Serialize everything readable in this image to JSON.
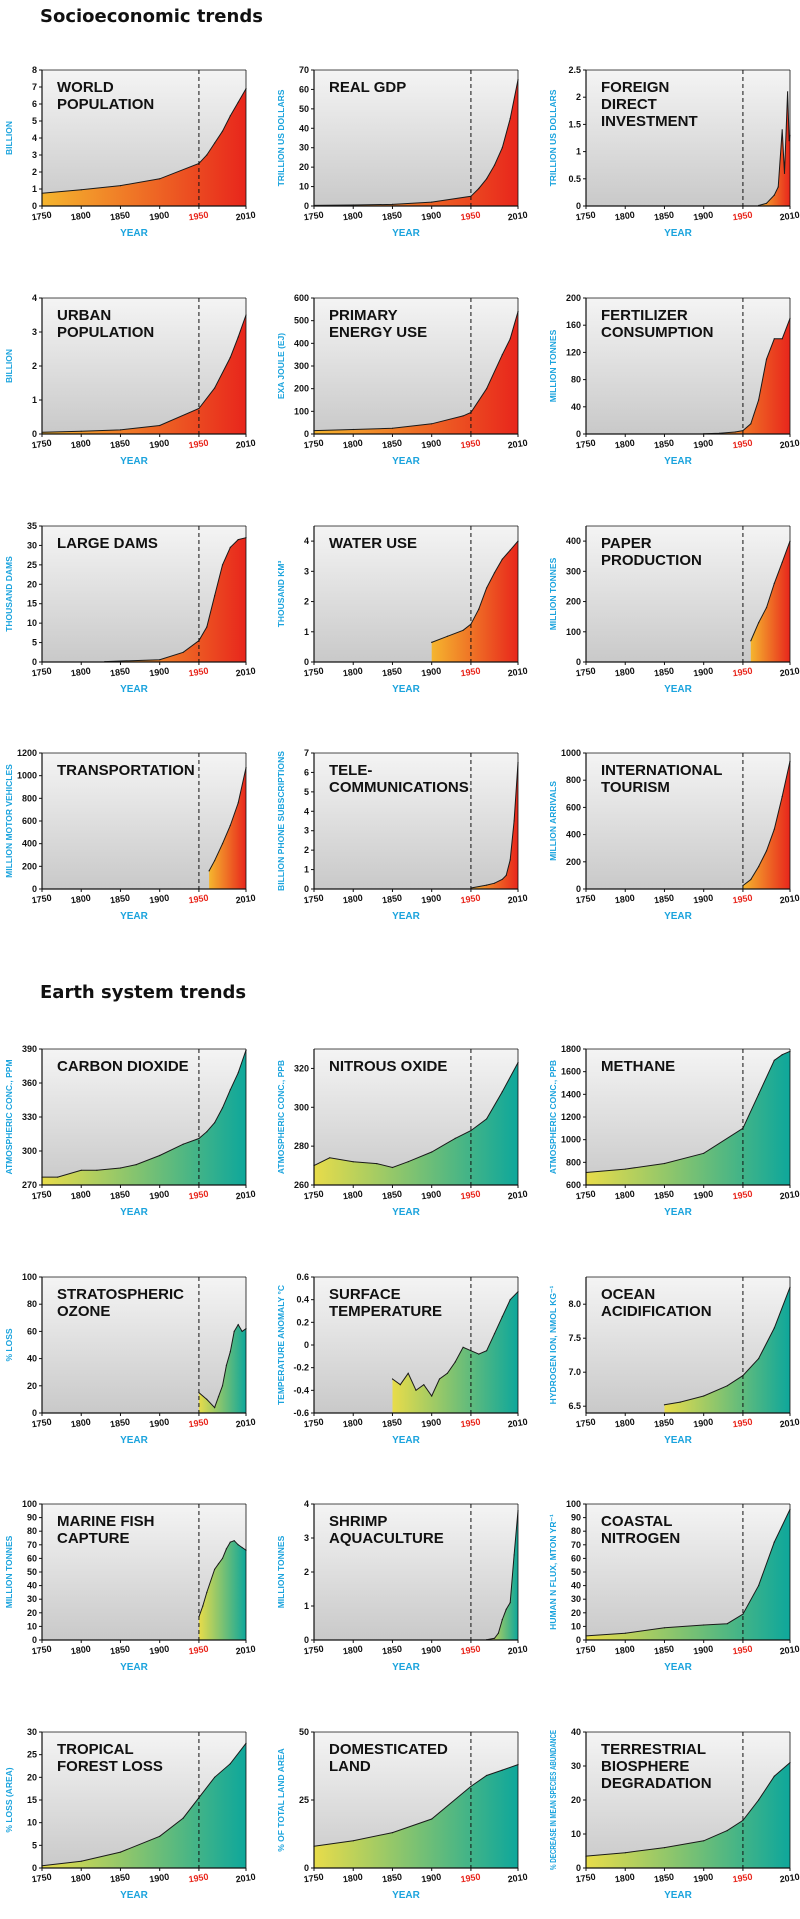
{
  "sections": [
    {
      "title": "Socioeconomic trends"
    },
    {
      "title": "Earth system trends"
    }
  ],
  "colors": {
    "socio_start": "#f5b52e",
    "socio_end": "#e8261c",
    "earth_start": "#e8dc4a",
    "earth_end": "#0ea79b",
    "axis_label": "#1aa3dd",
    "year_1950": "#e8261c",
    "panel_top": "#f4f4f4",
    "panel_bottom": "#c9c9c9"
  },
  "chart_data": [
    {
      "type": "area",
      "section": 0,
      "title": "WORLD\nPOPULATION",
      "ylabel": "BILLION",
      "xlabel": "YEAR",
      "ylim": [
        0,
        8
      ],
      "yticks": [
        "0",
        "1",
        "2",
        "3",
        "4",
        "5",
        "6",
        "7",
        "8"
      ],
      "xticks": [
        "1750",
        "1800",
        "1850",
        "1900",
        "1950",
        "2010"
      ],
      "x": [
        1750,
        1800,
        1850,
        1900,
        1950,
        1960,
        1970,
        1980,
        1990,
        2000,
        2010
      ],
      "values": [
        0.75,
        0.95,
        1.2,
        1.6,
        2.5,
        3.0,
        3.7,
        4.4,
        5.3,
        6.1,
        6.9
      ]
    },
    {
      "type": "area",
      "section": 0,
      "title": "REAL GDP",
      "ylabel": "TRILLION US DOLLARS",
      "xlabel": "YEAR",
      "ylim": [
        0,
        70
      ],
      "yticks": [
        "0",
        "10",
        "20",
        "30",
        "40",
        "50",
        "60",
        "70"
      ],
      "xticks": [
        "1750",
        "1800",
        "1850",
        "1900",
        "1950",
        "2010"
      ],
      "x": [
        1750,
        1800,
        1850,
        1900,
        1950,
        1960,
        1970,
        1980,
        1990,
        2000,
        2010
      ],
      "values": [
        0.3,
        0.5,
        0.8,
        2,
        5,
        9,
        14,
        21,
        30,
        45,
        65
      ]
    },
    {
      "type": "area",
      "section": 0,
      "title": "FOREIGN\nDIRECT\nINVESTMENT",
      "ylabel": "TRILLION US DOLLARS",
      "xlabel": "YEAR",
      "ylim": [
        0,
        2.5
      ],
      "yticks": [
        "0",
        "0.5",
        "1",
        "1.5",
        "2",
        "2.5"
      ],
      "xticks": [
        "1750",
        "1800",
        "1850",
        "1900",
        "1950",
        "2010"
      ],
      "x": [
        1970,
        1980,
        1990,
        1995,
        2000,
        2003,
        2007,
        2009,
        2010
      ],
      "values": [
        0.01,
        0.05,
        0.2,
        0.35,
        1.4,
        0.6,
        2.1,
        1.2,
        1.3
      ]
    },
    {
      "type": "area",
      "section": 0,
      "title": "URBAN\nPOPULATION",
      "ylabel": "BILLION",
      "xlabel": "YEAR",
      "ylim": [
        0,
        4
      ],
      "yticks": [
        "0",
        "1",
        "2",
        "3",
        "4"
      ],
      "xticks": [
        "1750",
        "1800",
        "1850",
        "1900",
        "1950",
        "2010"
      ],
      "x": [
        1750,
        1800,
        1850,
        1900,
        1950,
        1970,
        1990,
        2000,
        2010
      ],
      "values": [
        0.05,
        0.08,
        0.12,
        0.25,
        0.75,
        1.35,
        2.25,
        2.85,
        3.5
      ]
    },
    {
      "type": "area",
      "section": 0,
      "title": "PRIMARY\nENERGY USE",
      "ylabel": "EXA JOULE (EJ)",
      "xlabel": "YEAR",
      "ylim": [
        0,
        600
      ],
      "yticks": [
        "0",
        "100",
        "200",
        "300",
        "400",
        "500",
        "600"
      ],
      "xticks": [
        "1750",
        "1800",
        "1850",
        "1900",
        "1950",
        "2010"
      ],
      "x": [
        1750,
        1800,
        1850,
        1900,
        1940,
        1950,
        1970,
        1990,
        2000,
        2010
      ],
      "values": [
        15,
        20,
        25,
        45,
        80,
        95,
        200,
        350,
        420,
        540
      ]
    },
    {
      "type": "area",
      "section": 0,
      "title": "FERTILIZER\nCONSUMPTION",
      "ylabel": "MILLION TONNES",
      "xlabel": "YEAR",
      "ylim": [
        0,
        200
      ],
      "yticks": [
        "0",
        "40",
        "80",
        "120",
        "160",
        "200"
      ],
      "xticks": [
        "1750",
        "1800",
        "1850",
        "1900",
        "1950",
        "2010"
      ],
      "x": [
        1900,
        1920,
        1940,
        1950,
        1960,
        1970,
        1980,
        1990,
        2000,
        2010
      ],
      "values": [
        0.5,
        1,
        3,
        5,
        15,
        50,
        110,
        140,
        140,
        170
      ]
    },
    {
      "type": "area",
      "section": 0,
      "title": "LARGE DAMS",
      "ylabel": "THOUSAND DAMS",
      "xlabel": "YEAR",
      "ylim": [
        0,
        35
      ],
      "yticks": [
        "0",
        "5",
        "10",
        "15",
        "20",
        "25",
        "30",
        "35"
      ],
      "xticks": [
        "1750",
        "1800",
        "1850",
        "1900",
        "1950",
        "2010"
      ],
      "x": [
        1830,
        1900,
        1930,
        1950,
        1960,
        1970,
        1980,
        1990,
        2000,
        2010
      ],
      "values": [
        0.1,
        0.6,
        2.5,
        5.5,
        9,
        17,
        25,
        29.5,
        31.5,
        32
      ]
    },
    {
      "type": "area",
      "section": 0,
      "title": "WATER USE",
      "ylabel": "THOUSAND KM³",
      "xlabel": "YEAR",
      "ylim": [
        0,
        4.5
      ],
      "yticks": [
        "0",
        "1",
        "2",
        "3",
        "4"
      ],
      "xticks": [
        "1750",
        "1800",
        "1850",
        "1900",
        "1950",
        "2010"
      ],
      "x": [
        1900,
        1920,
        1940,
        1950,
        1960,
        1970,
        1980,
        1990,
        2000,
        2010
      ],
      "values": [
        0.65,
        0.85,
        1.05,
        1.25,
        1.75,
        2.45,
        2.95,
        3.4,
        3.7,
        4.0
      ]
    },
    {
      "type": "area",
      "section": 0,
      "title": "PAPER\nPRODUCTION",
      "ylabel": "MILLION TONNES",
      "xlabel": "YEAR",
      "ylim": [
        0,
        450
      ],
      "yticks": [
        "0",
        "100",
        "200",
        "300",
        "400"
      ],
      "xticks": [
        "1750",
        "1800",
        "1850",
        "1900",
        "1950",
        "2010"
      ],
      "x": [
        1960,
        1970,
        1980,
        1990,
        2000,
        2010
      ],
      "values": [
        70,
        130,
        180,
        260,
        330,
        400
      ]
    },
    {
      "type": "area",
      "section": 0,
      "title": "TRANSPORTATION",
      "ylabel": "MILLION MOTOR VEHICLES",
      "xlabel": "YEAR",
      "ylim": [
        0,
        1200
      ],
      "yticks": [
        "0",
        "200",
        "400",
        "600",
        "800",
        "1000",
        "1200"
      ],
      "xticks": [
        "1750",
        "1800",
        "1850",
        "1900",
        "1950",
        "2010"
      ],
      "x": [
        1963,
        1970,
        1980,
        1990,
        2000,
        2010
      ],
      "values": [
        160,
        250,
        400,
        560,
        760,
        1070
      ]
    },
    {
      "type": "area",
      "section": 0,
      "title": "TELE-\nCOMMUNICATIONS",
      "ylabel": "BILLION PHONE SUBSCRIPTIONS",
      "xlabel": "YEAR",
      "ylim": [
        0,
        7
      ],
      "yticks": [
        "0",
        "1",
        "2",
        "3",
        "4",
        "5",
        "6",
        "7"
      ],
      "xticks": [
        "1750",
        "1800",
        "1850",
        "1900",
        "1950",
        "2010"
      ],
      "x": [
        1950,
        1970,
        1980,
        1990,
        1995,
        2000,
        2005,
        2010
      ],
      "values": [
        0.05,
        0.2,
        0.3,
        0.5,
        0.7,
        1.5,
        3.5,
        6.5
      ]
    },
    {
      "type": "area",
      "section": 0,
      "title": "INTERNATIONAL\nTOURISM",
      "ylabel": "MILLION ARRIVALS",
      "xlabel": "YEAR",
      "ylim": [
        0,
        1000
      ],
      "yticks": [
        "0",
        "200",
        "400",
        "600",
        "800",
        "1000"
      ],
      "xticks": [
        "1750",
        "1800",
        "1850",
        "1900",
        "1950",
        "2010"
      ],
      "x": [
        1950,
        1960,
        1970,
        1980,
        1990,
        2000,
        2010
      ],
      "values": [
        25,
        70,
        165,
        280,
        440,
        680,
        940
      ]
    },
    {
      "type": "area",
      "section": 1,
      "title": "CARBON DIOXIDE",
      "ylabel": "ATMOSPHERIC CONC., PPM",
      "xlabel": "YEAR",
      "ylim": [
        270,
        390
      ],
      "yticks": [
        "270",
        "300",
        "330",
        "360",
        "390"
      ],
      "xticks": [
        "1750",
        "1800",
        "1850",
        "1900",
        "1950",
        "2010"
      ],
      "x": [
        1750,
        1770,
        1800,
        1820,
        1850,
        1870,
        1900,
        1930,
        1950,
        1960,
        1970,
        1980,
        1990,
        2000,
        2010
      ],
      "values": [
        277,
        277,
        283,
        283,
        285,
        288,
        296,
        306,
        311,
        317,
        325,
        338,
        354,
        369,
        389
      ]
    },
    {
      "type": "area",
      "section": 1,
      "title": "NITROUS OXIDE",
      "ylabel": "ATMOSPHERIC CONC., PPB",
      "xlabel": "YEAR",
      "ylim": [
        260,
        330
      ],
      "yticks": [
        "260",
        "280",
        "300",
        "320"
      ],
      "xticks": [
        "1750",
        "1800",
        "1850",
        "1900",
        "1950",
        "2010"
      ],
      "x": [
        1750,
        1770,
        1800,
        1830,
        1850,
        1870,
        1900,
        1930,
        1950,
        1970,
        1990,
        2010
      ],
      "values": [
        270,
        274,
        272,
        271,
        269,
        272,
        277,
        284,
        288,
        294,
        308,
        323
      ]
    },
    {
      "type": "area",
      "section": 1,
      "title": "METHANE",
      "ylabel": "ATMOSPHERIC CONC., PPB",
      "xlabel": "YEAR",
      "ylim": [
        600,
        1800
      ],
      "yticks": [
        "600",
        "800",
        "1000",
        "1200",
        "1400",
        "1600",
        "1800"
      ],
      "xticks": [
        "1750",
        "1800",
        "1850",
        "1900",
        "1950",
        "2010"
      ],
      "x": [
        1750,
        1800,
        1850,
        1900,
        1950,
        1970,
        1990,
        2000,
        2010
      ],
      "values": [
        710,
        740,
        790,
        880,
        1100,
        1400,
        1700,
        1750,
        1780
      ]
    },
    {
      "type": "area",
      "section": 1,
      "title": "STRATOSPHERIC\nOZONE",
      "ylabel": "% LOSS",
      "xlabel": "YEAR",
      "ylim": [
        0,
        100
      ],
      "yticks": [
        "0",
        "20",
        "40",
        "60",
        "80",
        "100"
      ],
      "xticks": [
        "1750",
        "1800",
        "1850",
        "1900",
        "1950",
        "2010"
      ],
      "x": [
        1950,
        1960,
        1970,
        1975,
        1980,
        1985,
        1990,
        1995,
        2000,
        2005,
        2010
      ],
      "values": [
        15,
        10,
        4,
        12,
        20,
        35,
        45,
        60,
        65,
        60,
        62
      ]
    },
    {
      "type": "area",
      "section": 1,
      "title": "SURFACE\nTEMPERATURE",
      "ylabel": "TEMPERATURE ANOMALY °C",
      "xlabel": "YEAR",
      "ylim": [
        -0.6,
        0.6
      ],
      "yticks": [
        "-0.6",
        "-0.4",
        "-0.2",
        "0",
        "0.2",
        "0.4",
        "0.6"
      ],
      "xticks": [
        "1750",
        "1800",
        "1850",
        "1900",
        "1950",
        "2010"
      ],
      "x": [
        1850,
        1860,
        1870,
        1880,
        1890,
        1900,
        1910,
        1920,
        1930,
        1940,
        1950,
        1960,
        1970,
        1980,
        1990,
        2000,
        2010
      ],
      "values": [
        -0.3,
        -0.35,
        -0.25,
        -0.4,
        -0.35,
        -0.45,
        -0.3,
        -0.25,
        -0.15,
        -0.02,
        -0.05,
        -0.08,
        -0.05,
        0.1,
        0.25,
        0.4,
        0.47
      ]
    },
    {
      "type": "area",
      "section": 1,
      "title": "OCEAN\nACIDIFICATION",
      "ylabel": "HYDROGEN ION, NMOL KG⁻¹",
      "xlabel": "YEAR",
      "ylim": [
        6.4,
        8.4
      ],
      "yticks": [
        "6.5",
        "7.0",
        "7.5",
        "8.0"
      ],
      "xticks": [
        "1750",
        "1800",
        "1850",
        "1900",
        "1950",
        "2010"
      ],
      "x": [
        1850,
        1870,
        1900,
        1930,
        1950,
        1970,
        1990,
        2010
      ],
      "values": [
        6.52,
        6.56,
        6.65,
        6.8,
        6.95,
        7.2,
        7.65,
        8.25
      ]
    },
    {
      "type": "area",
      "section": 1,
      "title": "MARINE FISH\nCAPTURE",
      "ylabel": "MILLION TONNES",
      "xlabel": "YEAR",
      "ylim": [
        0,
        100
      ],
      "yticks": [
        "0",
        "10",
        "20",
        "30",
        "40",
        "50",
        "60",
        "70",
        "80",
        "90",
        "100"
      ],
      "xticks": [
        "1750",
        "1800",
        "1850",
        "1900",
        "1950",
        "2010"
      ],
      "x": [
        1950,
        1955,
        1960,
        1970,
        1975,
        1980,
        1985,
        1990,
        1995,
        2000,
        2005,
        2010
      ],
      "values": [
        17,
        25,
        35,
        52,
        56,
        60,
        67,
        72,
        73,
        70,
        68,
        66
      ]
    },
    {
      "type": "area",
      "section": 1,
      "title": "SHRIMP\nAQUACULTURE",
      "ylabel": "MILLION TONNES",
      "xlabel": "YEAR",
      "ylim": [
        0,
        4
      ],
      "yticks": [
        "0",
        "1",
        "2",
        "3",
        "4"
      ],
      "xticks": [
        "1750",
        "1800",
        "1850",
        "1900",
        "1950",
        "2010"
      ],
      "x": [
        1970,
        1980,
        1985,
        1990,
        1995,
        2000,
        2005,
        2010
      ],
      "values": [
        0.01,
        0.05,
        0.2,
        0.6,
        0.9,
        1.1,
        2.5,
        3.8
      ]
    },
    {
      "type": "area",
      "section": 1,
      "title": "COASTAL\nNITROGEN",
      "ylabel": "HUMAN N FLUX, MTON YR⁻¹",
      "xlabel": "YEAR",
      "ylim": [
        0,
        100
      ],
      "yticks": [
        "0",
        "10",
        "20",
        "30",
        "40",
        "50",
        "60",
        "70",
        "80",
        "90",
        "100"
      ],
      "xticks": [
        "1750",
        "1800",
        "1850",
        "1900",
        "1950",
        "2010"
      ],
      "x": [
        1750,
        1800,
        1850,
        1900,
        1930,
        1950,
        1970,
        1990,
        2010
      ],
      "values": [
        3,
        5,
        9,
        11,
        12,
        19,
        40,
        72,
        96
      ]
    },
    {
      "type": "area",
      "section": 1,
      "title": "TROPICAL\nFOREST LOSS",
      "ylabel": "% LOSS (AREA)",
      "xlabel": "YEAR",
      "ylim": [
        0,
        30
      ],
      "yticks": [
        "0",
        "5",
        "10",
        "15",
        "20",
        "25",
        "30"
      ],
      "xticks": [
        "1750",
        "1800",
        "1850",
        "1900",
        "1950",
        "2010"
      ],
      "x": [
        1750,
        1800,
        1850,
        1900,
        1930,
        1950,
        1970,
        1990,
        2010
      ],
      "values": [
        0.5,
        1.5,
        3.5,
        7,
        11,
        15.5,
        20,
        23,
        27.5
      ]
    },
    {
      "type": "area",
      "section": 1,
      "title": "DOMESTICATED\nLAND",
      "ylabel": "% OF TOTAL LAND AREA",
      "xlabel": "YEAR",
      "ylim": [
        0,
        50
      ],
      "yticks": [
        "0",
        "25",
        "50"
      ],
      "xticks": [
        "1750",
        "1800",
        "1850",
        "1900",
        "1950",
        "2010"
      ],
      "x": [
        1750,
        1800,
        1850,
        1900,
        1950,
        1970,
        1990,
        2010
      ],
      "values": [
        8,
        10,
        13,
        18,
        30,
        34,
        36,
        38
      ]
    },
    {
      "type": "area",
      "section": 1,
      "title": "TERRESTRIAL\nBIOSPHERE\nDEGRADATION",
      "ylabel": "% DECREASE IN MEAN SPECIES ABUNDANCE",
      "xlabel": "YEAR",
      "ylim": [
        0,
        40
      ],
      "yticks": [
        "0",
        "10",
        "20",
        "30",
        "40"
      ],
      "xticks": [
        "1750",
        "1800",
        "1850",
        "1900",
        "1950",
        "2010"
      ],
      "x": [
        1750,
        1800,
        1850,
        1900,
        1930,
        1950,
        1970,
        1990,
        2010
      ],
      "values": [
        3.5,
        4.5,
        6,
        8,
        11,
        14,
        20,
        27,
        31
      ]
    }
  ]
}
